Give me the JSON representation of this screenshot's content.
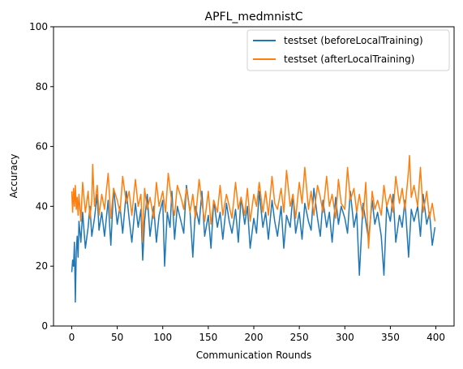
{
  "chart_data": {
    "type": "line",
    "title": "APFL_medmnistC",
    "xlabel": "Communication Rounds",
    "ylabel": "Accuracy",
    "xlim": [
      -20,
      420
    ],
    "ylim": [
      0,
      100
    ],
    "xticks": [
      0,
      50,
      100,
      150,
      200,
      250,
      300,
      350,
      400
    ],
    "yticks": [
      0,
      20,
      40,
      60,
      80,
      100
    ],
    "grid": false,
    "legend_position": "top-right",
    "series": [
      {
        "name": "testset (beforeLocalTraining)",
        "color": "#1f77b4",
        "x": [
          0,
          1,
          2,
          3,
          4,
          5,
          6,
          7,
          8,
          10,
          12,
          15,
          18,
          20,
          22,
          25,
          28,
          30,
          33,
          36,
          40,
          43,
          46,
          50,
          53,
          56,
          60,
          63,
          66,
          70,
          73,
          76,
          78,
          80,
          83,
          86,
          90,
          93,
          96,
          100,
          102,
          105,
          108,
          110,
          113,
          116,
          120,
          123,
          126,
          130,
          133,
          136,
          140,
          143,
          146,
          150,
          153,
          156,
          160,
          163,
          166,
          170,
          173,
          176,
          180,
          183,
          186,
          190,
          193,
          196,
          200,
          203,
          206,
          210,
          213,
          216,
          220,
          223,
          226,
          230,
          233,
          236,
          240,
          243,
          246,
          250,
          253,
          256,
          260,
          263,
          266,
          270,
          273,
          276,
          280,
          283,
          286,
          290,
          293,
          296,
          300,
          303,
          306,
          310,
          313,
          316,
          320,
          323,
          326,
          330,
          333,
          336,
          340,
          343,
          346,
          350,
          353,
          356,
          360,
          363,
          366,
          370,
          373,
          376,
          380,
          383,
          386,
          390,
          393,
          396,
          399
        ],
        "y": [
          18,
          22,
          20,
          28,
          8,
          25,
          30,
          23,
          35,
          28,
          38,
          26,
          33,
          40,
          30,
          36,
          44,
          32,
          38,
          30,
          42,
          27,
          46,
          34,
          40,
          31,
          45,
          36,
          28,
          41,
          33,
          39,
          22,
          35,
          44,
          30,
          40,
          28,
          37,
          42,
          20,
          38,
          33,
          45,
          29,
          40,
          35,
          31,
          47,
          38,
          23,
          40,
          34,
          45,
          30,
          37,
          26,
          42,
          33,
          38,
          29,
          41,
          35,
          31,
          39,
          28,
          43,
          34,
          40,
          26,
          36,
          31,
          45,
          33,
          38,
          29,
          42,
          35,
          30,
          40,
          26,
          37,
          33,
          44,
          31,
          38,
          29,
          41,
          35,
          32,
          46,
          36,
          30,
          42,
          33,
          38,
          28,
          43,
          34,
          40,
          36,
          31,
          45,
          33,
          38,
          17,
          41,
          35,
          29,
          42,
          34,
          38,
          30,
          17,
          40,
          35,
          44,
          28,
          37,
          33,
          42,
          23,
          39,
          35,
          40,
          30,
          44,
          34,
          38,
          27,
          33
        ]
      },
      {
        "name": "testset (afterLocalTraining)",
        "color": "#ff7f0e",
        "x": [
          0,
          1,
          2,
          3,
          4,
          5,
          6,
          7,
          8,
          10,
          12,
          15,
          18,
          20,
          22,
          23,
          25,
          28,
          30,
          33,
          36,
          40,
          43,
          46,
          50,
          53,
          56,
          60,
          63,
          66,
          70,
          73,
          76,
          78,
          80,
          83,
          86,
          90,
          93,
          96,
          100,
          103,
          106,
          110,
          113,
          116,
          120,
          123,
          126,
          130,
          133,
          136,
          140,
          143,
          146,
          150,
          153,
          156,
          160,
          163,
          166,
          170,
          173,
          176,
          180,
          183,
          186,
          190,
          193,
          196,
          200,
          203,
          206,
          210,
          213,
          216,
          220,
          223,
          226,
          230,
          233,
          236,
          240,
          243,
          246,
          250,
          253,
          256,
          260,
          263,
          266,
          270,
          273,
          276,
          280,
          283,
          286,
          290,
          293,
          296,
          300,
          303,
          306,
          310,
          313,
          316,
          320,
          323,
          326,
          330,
          333,
          336,
          340,
          343,
          346,
          350,
          353,
          356,
          360,
          363,
          366,
          370,
          371,
          373,
          376,
          380,
          383,
          386,
          390,
          393,
          396,
          399
        ],
        "y": [
          45,
          38,
          46,
          40,
          47,
          39,
          43,
          37,
          44,
          35,
          48,
          38,
          45,
          36,
          42,
          54,
          40,
          47,
          37,
          44,
          39,
          51,
          36,
          46,
          42,
          38,
          50,
          41,
          45,
          37,
          49,
          40,
          44,
          28,
          46,
          39,
          43,
          36,
          48,
          40,
          45,
          38,
          51,
          41,
          37,
          47,
          43,
          39,
          46,
          38,
          44,
          36,
          49,
          41,
          35,
          45,
          34,
          42,
          38,
          47,
          37,
          44,
          40,
          36,
          48,
          39,
          43,
          37,
          46,
          35,
          44,
          40,
          48,
          38,
          45,
          37,
          50,
          41,
          39,
          46,
          38,
          52,
          40,
          44,
          36,
          48,
          41,
          53,
          39,
          45,
          37,
          47,
          43,
          38,
          50,
          40,
          44,
          36,
          49,
          41,
          39,
          53,
          42,
          46,
          38,
          44,
          36,
          48,
          26,
          45,
          39,
          42,
          37,
          47,
          40,
          44,
          38,
          50,
          41,
          46,
          39,
          52,
          57,
          43,
          47,
          40,
          53,
          38,
          45,
          36,
          41,
          35
        ]
      }
    ]
  }
}
